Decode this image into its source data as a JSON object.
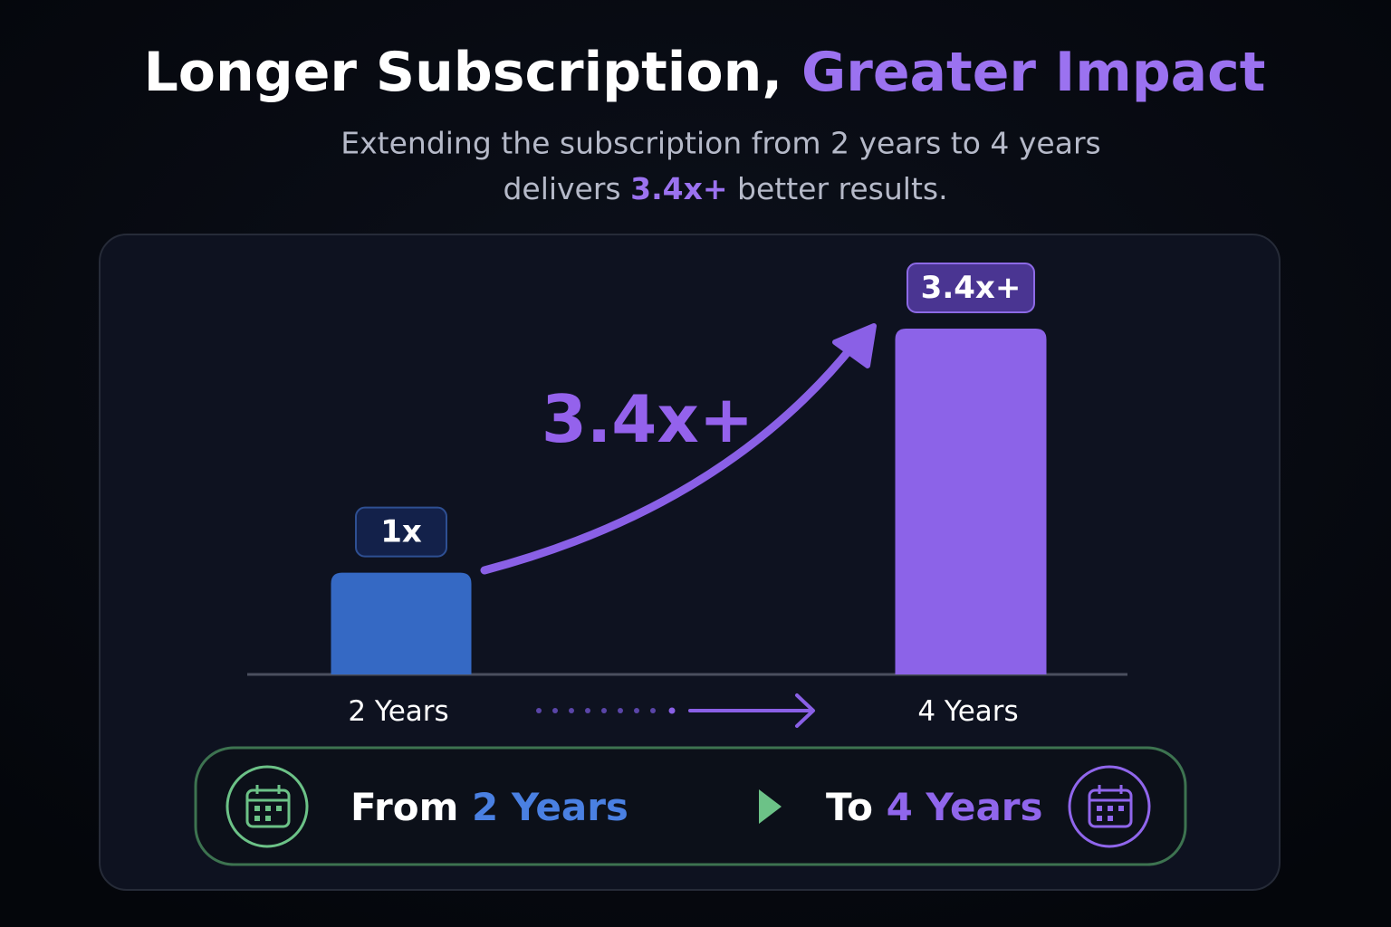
{
  "chart_data": {
    "type": "bar",
    "title": "Longer Subscription,",
    "title_highlight": "Greater Impact",
    "subtitle": [
      "Extending the subscription from 2 years to 4 years",
      "delivers",
      "3.4x+",
      "better results."
    ],
    "categories": [
      "2 Years",
      "4 Years"
    ],
    "values": [
      1,
      3.4
    ],
    "value_labels": [
      "1x",
      "3.4x+"
    ],
    "colors": [
      "#3569c4",
      "#8c63e8"
    ],
    "annotation": "3.4x+"
  },
  "footer": {
    "from_label": "From",
    "from_value": "2 Years",
    "to_label": "To",
    "to_value": "4 Years"
  }
}
